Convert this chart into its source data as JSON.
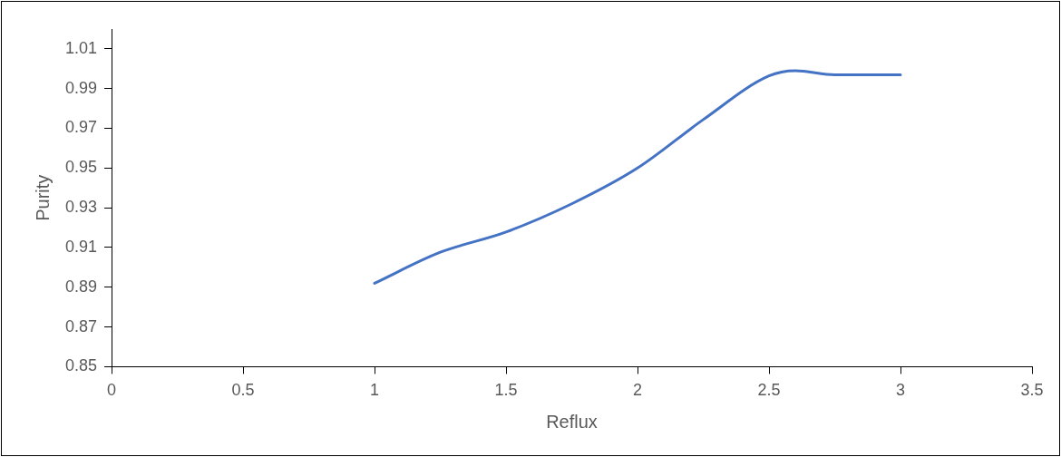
{
  "chart_data": {
    "type": "line",
    "xlabel": "Reflux",
    "ylabel": "Purity",
    "x": [
      1,
      1.25,
      1.5,
      1.75,
      2,
      2.25,
      2.5,
      2.6,
      2.75,
      3
    ],
    "series": [
      {
        "color": "#4472c4",
        "values": [
          0.892,
          0.9076,
          0.9178,
          0.932,
          0.95,
          0.9744,
          0.9964,
          0.999,
          0.997,
          0.997
        ]
      }
    ],
    "xlim": [
      0,
      3.5
    ],
    "xticks": [
      0,
      0.5,
      1,
      1.5,
      2,
      2.5,
      3,
      3.5
    ],
    "ylim": [
      0.85,
      1.02
    ],
    "yticks": [
      0.85,
      0.87,
      0.89,
      0.91,
      0.93,
      0.95,
      0.97,
      0.99,
      1.01
    ],
    "grid": false,
    "legend": false,
    "marker": "none",
    "line_style": "solid"
  }
}
